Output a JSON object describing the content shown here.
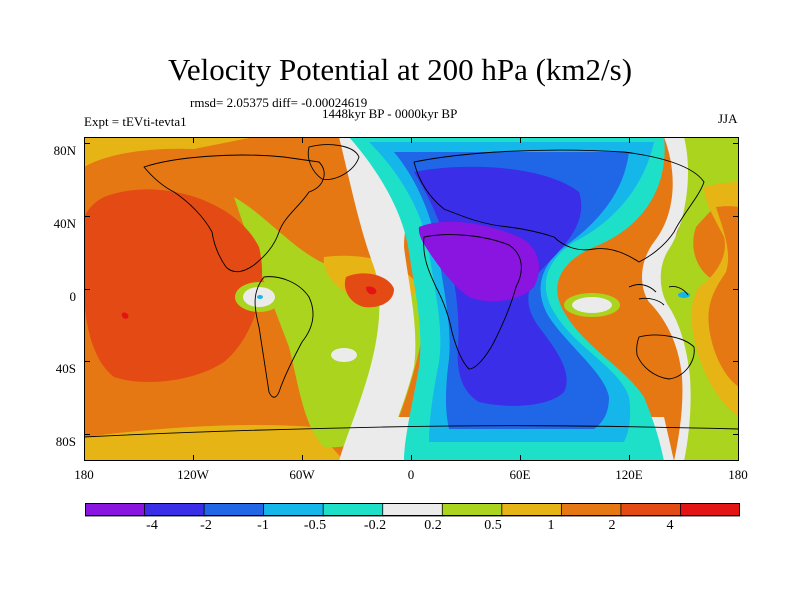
{
  "title": "Velocity Potential at 200 hPa (km2/s)",
  "stats": "rmsd= 2.05375 diff= -0.00024619",
  "period": "1448kyr BP - 0000kyr BP",
  "experiment": "Expt = tEVti-tevta1",
  "season": "JJA",
  "lat_labels": [
    "80N",
    "40N",
    "0",
    "40S",
    "80S"
  ],
  "lon_labels": [
    "180",
    "120W",
    "60W",
    "0",
    "60E",
    "120E",
    "180"
  ],
  "colorbar": {
    "labels": [
      "-4",
      "-2",
      "-1",
      "-0.5",
      "-0.2",
      "0.2",
      "0.5",
      "1",
      "2",
      "4"
    ],
    "colors": [
      "#8a14e0",
      "#3a2ee8",
      "#1f67e6",
      "#15b7ea",
      "#1ee0c8",
      "#ebebeb",
      "#aad41e",
      "#e6b414",
      "#e67814",
      "#e44b14",
      "#e41414"
    ]
  }
}
